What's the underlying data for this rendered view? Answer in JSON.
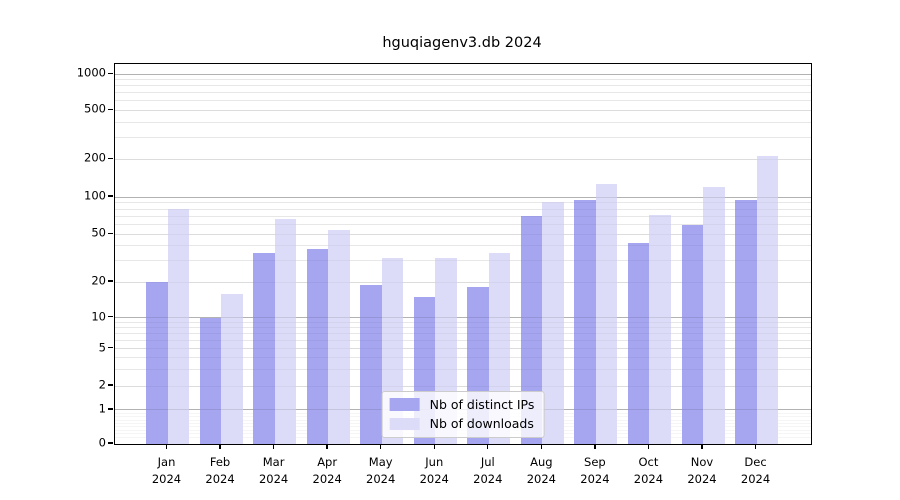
{
  "title": "hguqiagenv3.db 2024",
  "year": "2024",
  "chart_data": {
    "type": "bar",
    "title": "hguqiagenv3.db 2024",
    "categories": [
      "Jan 2024",
      "Feb 2024",
      "Mar 2024",
      "Apr 2024",
      "May 2024",
      "Jun 2024",
      "Jul 2024",
      "Aug 2024",
      "Sep 2024",
      "Oct 2024",
      "Nov 2024",
      "Dec 2024"
    ],
    "series": [
      {
        "name": "Nb of distinct IPs",
        "color": "#a5a5f0",
        "values": [
          20,
          10,
          35,
          38,
          19,
          15,
          18,
          70,
          95,
          42,
          59,
          94
        ]
      },
      {
        "name": "Nb of downloads",
        "color": "#dcdcf8",
        "values": [
          80,
          16,
          66,
          54,
          32,
          32,
          35,
          91,
          126,
          71,
          120,
          213
        ]
      }
    ],
    "yscale": "symlog",
    "yticks": [
      0,
      1,
      2,
      5,
      10,
      20,
      50,
      100,
      200,
      500,
      1000
    ],
    "ytick_labels": [
      "0",
      "1",
      "2",
      "5",
      "10",
      "20",
      "50",
      "100",
      "200",
      "500",
      "1000"
    ],
    "ylim": [
      0,
      1150
    ],
    "grid": true,
    "legend_position": "lower center"
  },
  "legend": {
    "items": [
      {
        "label": "Nb of distinct IPs",
        "color": "#a5a5f0"
      },
      {
        "label": "Nb of downloads",
        "color": "#dcdcf8"
      }
    ]
  },
  "colors": {
    "ips_bar": "#a5a5f0",
    "downloads_bar": "#dcdcf8",
    "frame": "#000000",
    "grid_major": "#c6c6c6",
    "grid_minor": "#ececec"
  }
}
